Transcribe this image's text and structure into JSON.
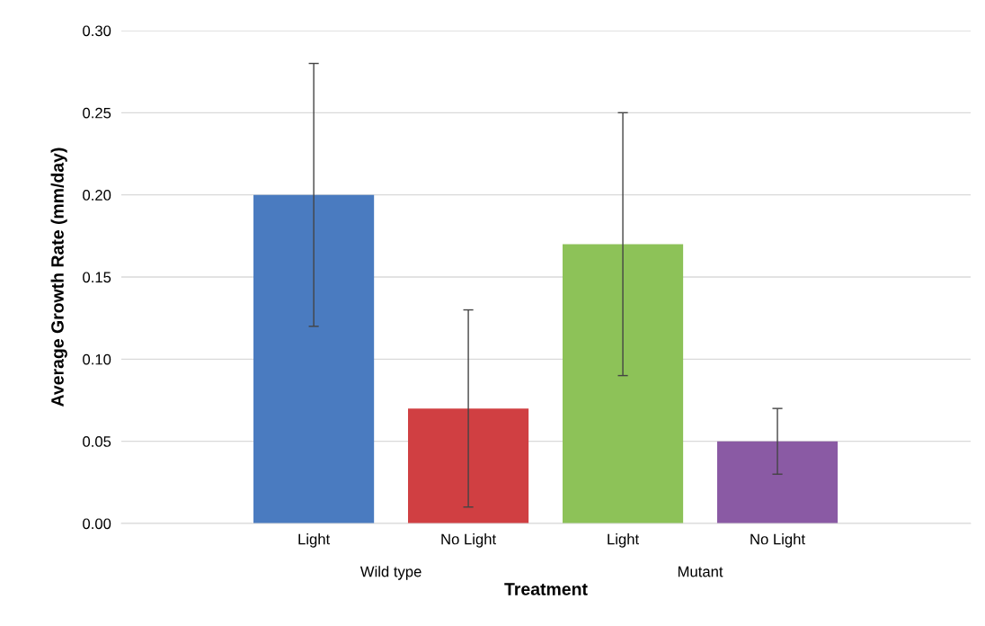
{
  "chart_data": {
    "type": "bar",
    "xlabel": "Treatment",
    "ylabel": "Average Growth Rate (mm/day)",
    "categories": [
      "Light",
      "No Light",
      "Light",
      "No Light"
    ],
    "values": [
      0.2,
      0.07,
      0.17,
      0.05
    ],
    "colors": [
      "#4a7bc0",
      "#d03f42",
      "#8dc258",
      "#8a5aa4"
    ],
    "errors": [
      0.08,
      0.06,
      0.08,
      0.02
    ],
    "annotations": [
      "Wild type",
      "Mutant"
    ],
    "ylim": [
      0,
      0.3
    ],
    "yticks": [
      {
        "value": 0,
        "label": "0.00"
      },
      {
        "value": 0.05,
        "label": "0.05"
      },
      {
        "value": 0.1,
        "label": "0.10"
      },
      {
        "value": 0.15,
        "label": "0.15"
      },
      {
        "value": 0.2,
        "label": "0.20"
      },
      {
        "value": 0.25,
        "label": "0.25"
      },
      {
        "value": 0.3,
        "label": "0.30"
      }
    ],
    "grid": "y",
    "legend": false
  }
}
